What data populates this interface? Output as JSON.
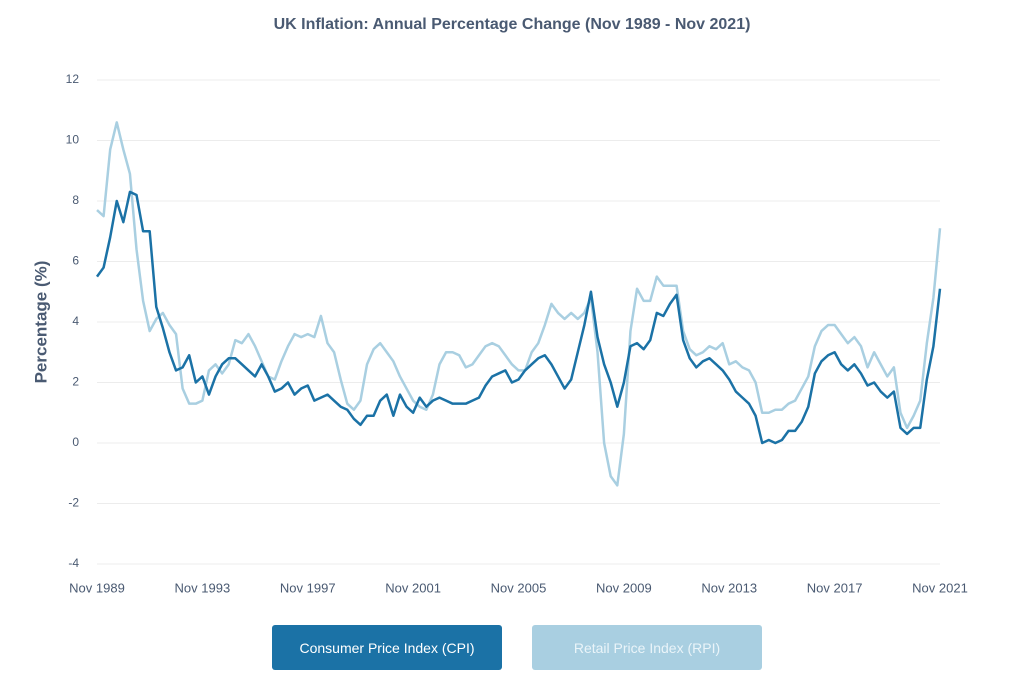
{
  "chart_data": {
    "type": "line",
    "title": "UK Inflation: Annual Percentage Change (Nov 1989 - Nov 2021)",
    "y_label": "Percentage (%)",
    "x": [
      "Nov 1989",
      "Feb 1990",
      "May 1990",
      "Aug 1990",
      "Nov 1990",
      "Feb 1991",
      "May 1991",
      "Aug 1991",
      "Nov 1991",
      "Feb 1992",
      "May 1992",
      "Aug 1992",
      "Nov 1992",
      "Feb 1993",
      "May 1993",
      "Aug 1993",
      "Nov 1993",
      "Feb 1994",
      "May 1994",
      "Aug 1994",
      "Nov 1994",
      "Feb 1995",
      "May 1995",
      "Aug 1995",
      "Nov 1995",
      "Feb 1996",
      "May 1996",
      "Aug 1996",
      "Nov 1996",
      "Feb 1997",
      "May 1997",
      "Aug 1997",
      "Nov 1997",
      "Feb 1998",
      "May 1998",
      "Aug 1998",
      "Nov 1998",
      "Feb 1999",
      "May 1999",
      "Aug 1999",
      "Nov 1999",
      "Feb 2000",
      "May 2000",
      "Aug 2000",
      "Nov 2000",
      "Feb 2001",
      "May 2001",
      "Aug 2001",
      "Nov 2001",
      "Feb 2002",
      "May 2002",
      "Aug 2002",
      "Nov 2002",
      "Feb 2003",
      "May 2003",
      "Aug 2003",
      "Nov 2003",
      "Feb 2004",
      "May 2004",
      "Aug 2004",
      "Nov 2004",
      "Feb 2005",
      "May 2005",
      "Aug 2005",
      "Nov 2005",
      "Feb 2006",
      "May 2006",
      "Aug 2006",
      "Nov 2006",
      "Feb 2007",
      "May 2007",
      "Aug 2007",
      "Nov 2007",
      "Feb 2008",
      "May 2008",
      "Aug 2008",
      "Nov 2008",
      "Feb 2009",
      "May 2009",
      "Aug 2009",
      "Nov 2009",
      "Feb 2010",
      "May 2010",
      "Aug 2010",
      "Nov 2010",
      "Feb 2011",
      "May 2011",
      "Aug 2011",
      "Nov 2011",
      "Feb 2012",
      "May 2012",
      "Aug 2012",
      "Nov 2012",
      "Feb 2013",
      "May 2013",
      "Aug 2013",
      "Nov 2013",
      "Feb 2014",
      "May 2014",
      "Aug 2014",
      "Nov 2014",
      "Feb 2015",
      "May 2015",
      "Aug 2015",
      "Nov 2015",
      "Feb 2016",
      "May 2016",
      "Aug 2016",
      "Nov 2016",
      "Feb 2017",
      "May 2017",
      "Aug 2017",
      "Nov 2017",
      "Feb 2018",
      "May 2018",
      "Aug 2018",
      "Nov 2018",
      "Feb 2019",
      "May 2019",
      "Aug 2019",
      "Nov 2019",
      "Feb 2020",
      "May 2020",
      "Aug 2020",
      "Nov 2020",
      "Feb 2021",
      "May 2021",
      "Aug 2021",
      "Nov 2021"
    ],
    "xticks": [
      "Nov 1989",
      "Nov 1993",
      "Nov 1997",
      "Nov 2001",
      "Nov 2005",
      "Nov 2009",
      "Nov 2013",
      "Nov 2017",
      "Nov 2021"
    ],
    "ylim": [
      -4,
      12
    ],
    "yticks": [
      -4,
      -2,
      0,
      2,
      4,
      6,
      8,
      10,
      12
    ],
    "grid": true,
    "series": [
      {
        "name": "Consumer Price Index (CPI)",
        "color": "#1b72a6",
        "values": [
          5.5,
          5.8,
          6.8,
          8.0,
          7.3,
          8.3,
          8.2,
          7.0,
          7.0,
          4.5,
          3.8,
          3.0,
          2.4,
          2.5,
          2.9,
          2.0,
          2.2,
          1.6,
          2.2,
          2.6,
          2.8,
          2.8,
          2.6,
          2.4,
          2.2,
          2.6,
          2.2,
          1.7,
          1.8,
          2.0,
          1.6,
          1.8,
          1.9,
          1.4,
          1.5,
          1.6,
          1.4,
          1.2,
          1.1,
          0.8,
          0.6,
          0.9,
          0.9,
          1.4,
          1.6,
          0.9,
          1.6,
          1.2,
          1.0,
          1.5,
          1.2,
          1.4,
          1.5,
          1.4,
          1.3,
          1.3,
          1.3,
          1.4,
          1.5,
          1.9,
          2.2,
          2.3,
          2.4,
          2.0,
          2.1,
          2.4,
          2.6,
          2.8,
          2.9,
          2.6,
          2.2,
          1.8,
          2.1,
          3.0,
          3.9,
          5.0,
          3.5,
          2.6,
          2.0,
          1.2,
          2.0,
          3.2,
          3.3,
          3.1,
          3.4,
          4.3,
          4.2,
          4.6,
          4.9,
          3.4,
          2.8,
          2.5,
          2.7,
          2.8,
          2.6,
          2.4,
          2.1,
          1.7,
          1.5,
          1.3,
          0.9,
          0.0,
          0.1,
          0.0,
          0.1,
          0.4,
          0.4,
          0.7,
          1.2,
          2.3,
          2.7,
          2.9,
          3.0,
          2.6,
          2.4,
          2.6,
          2.3,
          1.9,
          2.0,
          1.7,
          1.5,
          1.7,
          0.5,
          0.3,
          0.5,
          0.5,
          2.1,
          3.2,
          5.1
        ]
      },
      {
        "name": "Retail Price Index (RPI)",
        "color": "#a9cfe1",
        "values": [
          7.7,
          7.5,
          9.7,
          10.6,
          9.7,
          8.9,
          6.4,
          4.7,
          3.7,
          4.1,
          4.3,
          3.9,
          3.6,
          1.8,
          1.3,
          1.3,
          1.4,
          2.4,
          2.6,
          2.3,
          2.6,
          3.4,
          3.3,
          3.6,
          3.2,
          2.7,
          2.2,
          2.1,
          2.7,
          3.2,
          3.6,
          3.5,
          3.6,
          3.5,
          4.2,
          3.3,
          3.0,
          2.1,
          1.3,
          1.1,
          1.4,
          2.6,
          3.1,
          3.3,
          3.0,
          2.7,
          2.2,
          1.8,
          1.4,
          1.2,
          1.1,
          1.6,
          2.6,
          3.0,
          3.0,
          2.9,
          2.5,
          2.6,
          2.9,
          3.2,
          3.3,
          3.2,
          2.9,
          2.6,
          2.4,
          2.4,
          3.0,
          3.3,
          3.9,
          4.6,
          4.3,
          4.1,
          4.3,
          4.1,
          4.3,
          4.8,
          3.0,
          0.0,
          -1.1,
          -1.4,
          0.3,
          3.7,
          5.1,
          4.7,
          4.7,
          5.5,
          5.2,
          5.2,
          5.2,
          3.7,
          3.1,
          2.9,
          3.0,
          3.2,
          3.1,
          3.3,
          2.6,
          2.7,
          2.5,
          2.4,
          2.0,
          1.0,
          1.0,
          1.1,
          1.1,
          1.3,
          1.4,
          1.8,
          2.2,
          3.2,
          3.7,
          3.9,
          3.9,
          3.6,
          3.3,
          3.5,
          3.2,
          2.5,
          3.0,
          2.6,
          2.2,
          2.5,
          1.0,
          0.5,
          0.9,
          1.4,
          3.3,
          4.8,
          7.1
        ]
      }
    ]
  }
}
